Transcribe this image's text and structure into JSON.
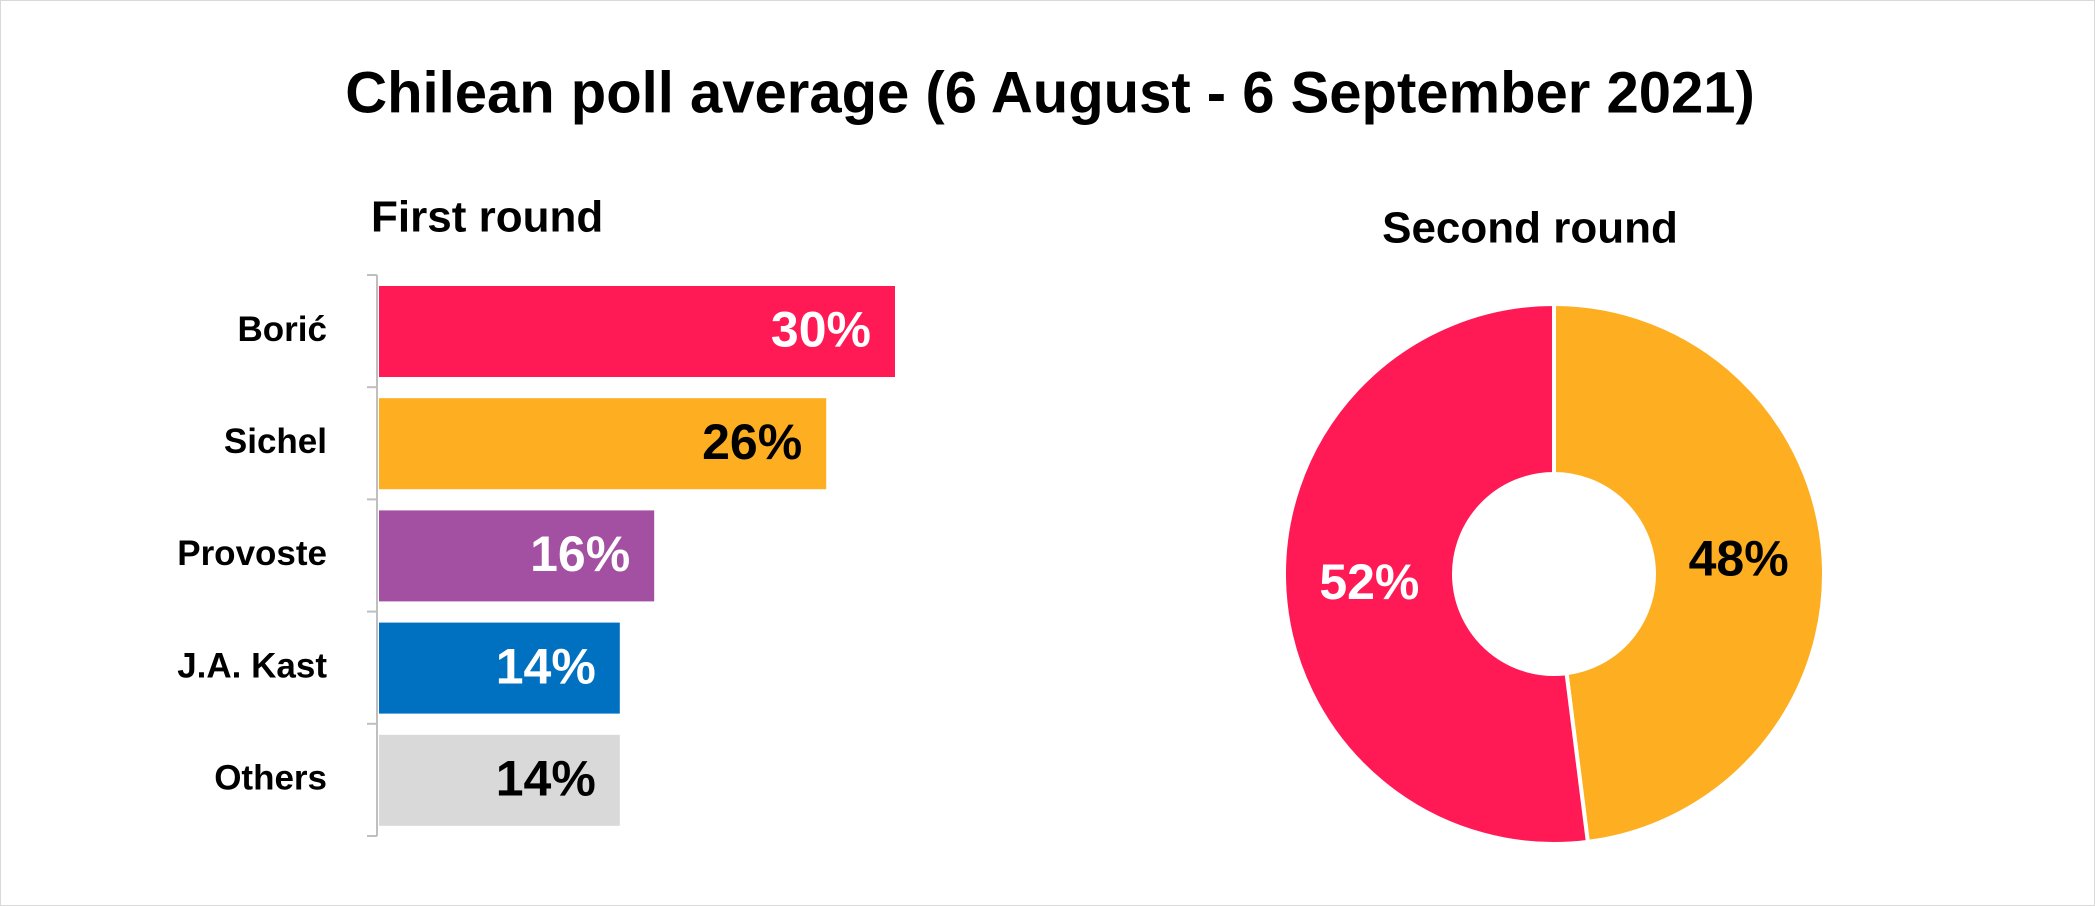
{
  "title": "Chilean poll average (6 August - 6 September 2021)",
  "chart_data": [
    {
      "type": "bar",
      "orientation": "horizontal",
      "title": "First round",
      "categories": [
        "Borić",
        "Sichel",
        "Provoste",
        "J.A. Kast",
        "Others"
      ],
      "values": [
        30,
        26,
        16,
        14,
        14
      ],
      "value_labels": [
        "30%",
        "26%",
        "16%",
        "14%",
        "14%"
      ],
      "colors": [
        "#ff1a55",
        "#fdae21",
        "#a34fa2",
        "#0070c0",
        "#d9d9d9"
      ],
      "label_colors": [
        "#ffffff",
        "#000000",
        "#ffffff",
        "#ffffff",
        "#000000"
      ]
    },
    {
      "type": "pie",
      "title": "Second round",
      "donut": true,
      "values": [
        48,
        52
      ],
      "value_labels": [
        "48%",
        "52%"
      ],
      "colors": [
        "#fdae21",
        "#ff1a55"
      ],
      "label_colors": [
        "#000000",
        "#ffffff"
      ]
    }
  ]
}
